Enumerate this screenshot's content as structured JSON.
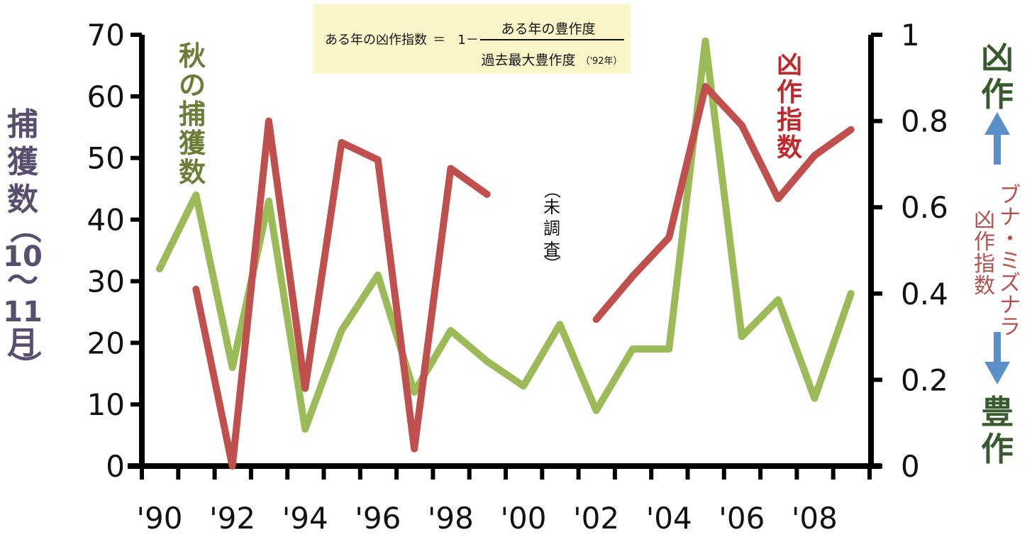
{
  "chart_data": {
    "type": "line",
    "x_categories": [
      "'90",
      "'91",
      "'92",
      "'93",
      "'94",
      "'95",
      "'96",
      "'97",
      "'98",
      "'99",
      "'00",
      "'01",
      "'02",
      "'03",
      "'04",
      "'05",
      "'06",
      "'07",
      "'08",
      "'09"
    ],
    "x_tick_labels": [
      "'90",
      "'92",
      "'94",
      "'96",
      "'98",
      "'00",
      "'02",
      "'04",
      "'06",
      "'08"
    ],
    "left_axis": {
      "label_chars": [
        "捕",
        "獲",
        "数",
        "（",
        "10",
        "～",
        "11",
        "月",
        "）"
      ],
      "ylim": [
        0,
        70
      ],
      "ticks": [
        "0",
        "10",
        "20",
        "30",
        "40",
        "50",
        "60",
        "70"
      ]
    },
    "right_axis": {
      "ylim": [
        0,
        1
      ],
      "ticks": [
        "0",
        "0.2",
        "0.4",
        "0.6",
        "0.8",
        "1"
      ],
      "top_label_chars": [
        "凶",
        "作"
      ],
      "bottom_label_chars": [
        "豊",
        "作"
      ]
    },
    "series": [
      {
        "name": "秋の捕獲数",
        "name_chars": [
          "秋",
          "の",
          "捕",
          "獲",
          "数"
        ],
        "axis": "left",
        "color": "#9bbb59",
        "values": [
          32,
          44,
          16,
          43,
          6,
          22,
          31,
          12,
          22,
          17,
          13,
          23,
          9,
          19,
          19,
          69,
          21,
          27,
          11,
          28
        ]
      },
      {
        "name": "凶作指数",
        "name_chars": [
          "凶",
          "作",
          "指",
          "数"
        ],
        "axis": "right",
        "color": "#c0504d",
        "values": [
          null,
          0.41,
          0.0,
          0.8,
          0.18,
          0.75,
          0.71,
          0.04,
          0.69,
          0.63,
          null,
          null,
          0.34,
          0.44,
          0.53,
          0.88,
          0.79,
          0.62,
          0.72,
          0.78
        ]
      }
    ],
    "annotations": {
      "missing_chars": [
        "（",
        "未",
        "調",
        "査",
        "）"
      ],
      "right_series_desc": {
        "column1": [
          "ブ",
          "ナ",
          "・",
          "ミ",
          "ズ",
          "ナ",
          "ラ"
        ],
        "column2": [
          "凶",
          "作",
          "指",
          "数"
        ]
      }
    },
    "formula": {
      "lhs": "ある年の凶作指数",
      "eq": "＝",
      "one_minus": "1－",
      "numerator": "ある年の豊作度",
      "denominator": "過去最大豊作度",
      "denominator_note": "（'92年）"
    },
    "colors": {
      "axis_label_left": "#5a4e6e",
      "series_label_green": "#6b7d36",
      "series_label_red": "#c0282d",
      "side_label_dark_green": "#3a5a30",
      "arrow_blue": "#5b8fc7",
      "desc_red": "#b5524f",
      "formula_bg": "#fbf5c9"
    }
  }
}
